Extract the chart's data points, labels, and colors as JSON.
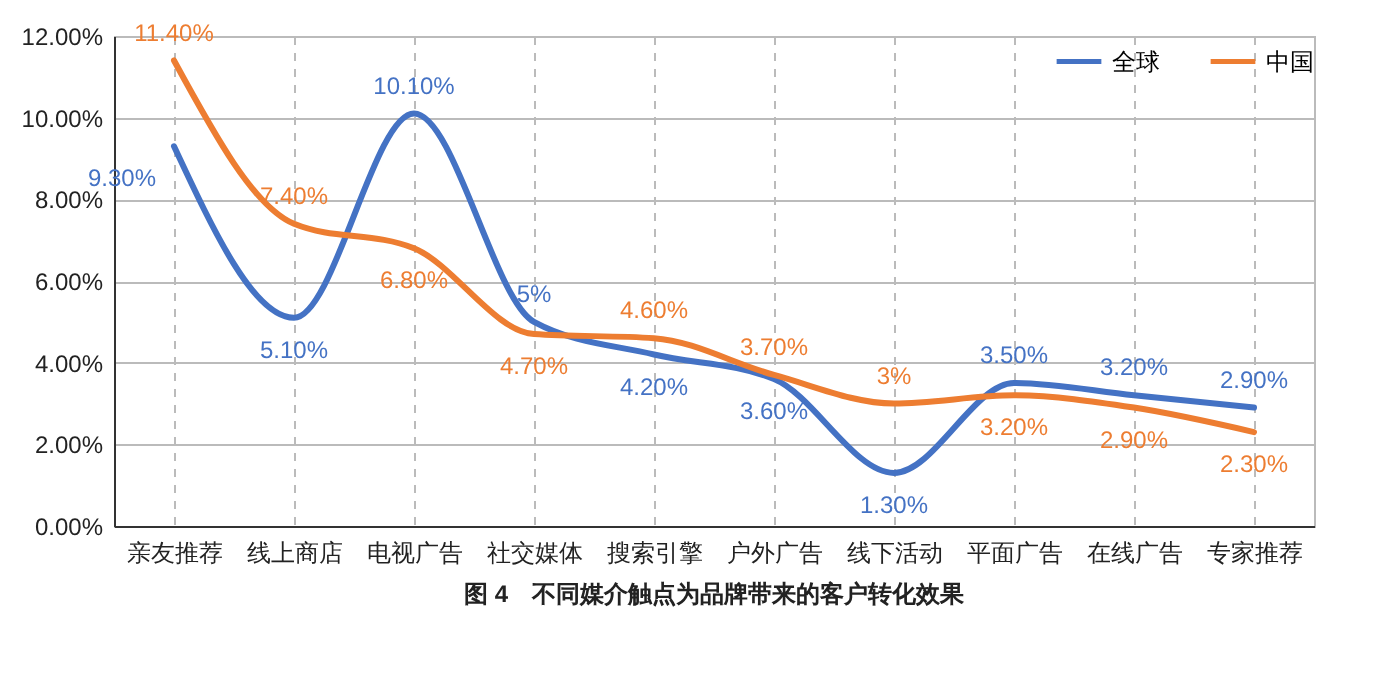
{
  "chart_data": {
    "type": "line",
    "title": "图 4　不同媒介触点为品牌带来的客户转化效果",
    "categories": [
      "亲友推荐",
      "线上商店",
      "电视广告",
      "社交媒体",
      "搜索引擎",
      "户外广告",
      "线下活动",
      "平面广告",
      "在线广告",
      "专家推荐"
    ],
    "series": [
      {
        "name": "全球",
        "color": "#4472c4",
        "values": [
          9.3,
          5.1,
          10.1,
          5,
          4.2,
          3.6,
          1.3,
          3.5,
          3.2,
          2.9
        ],
        "value_labels": [
          "9.30%",
          "5.10%",
          "10.10%",
          "5%",
          "4.20%",
          "3.60%",
          "1.30%",
          "3.50%",
          "3.20%",
          "2.90%"
        ]
      },
      {
        "name": "中国",
        "color": "#ed7d31",
        "values": [
          11.4,
          7.4,
          6.8,
          4.7,
          4.6,
          3.7,
          3,
          3.2,
          2.9,
          2.3
        ],
        "value_labels": [
          "11.40%",
          "7.40%",
          "6.80%",
          "4.70%",
          "4.60%",
          "3.70%",
          "3%",
          "3.20%",
          "2.90%",
          "2.30%"
        ]
      }
    ],
    "ylim": [
      0,
      12
    ],
    "yticks": [
      {
        "value": 0,
        "label": "0.00%"
      },
      {
        "value": 2,
        "label": "2.00%"
      },
      {
        "value": 4,
        "label": "4.00%"
      },
      {
        "value": 6,
        "label": "6.00%"
      },
      {
        "value": 8,
        "label": "8.00%"
      },
      {
        "value": 10,
        "label": "10.00%"
      },
      {
        "value": 12,
        "label": "12.00%"
      }
    ],
    "grid": true,
    "legend": "top right",
    "marker": "none",
    "line_style": "solid"
  }
}
